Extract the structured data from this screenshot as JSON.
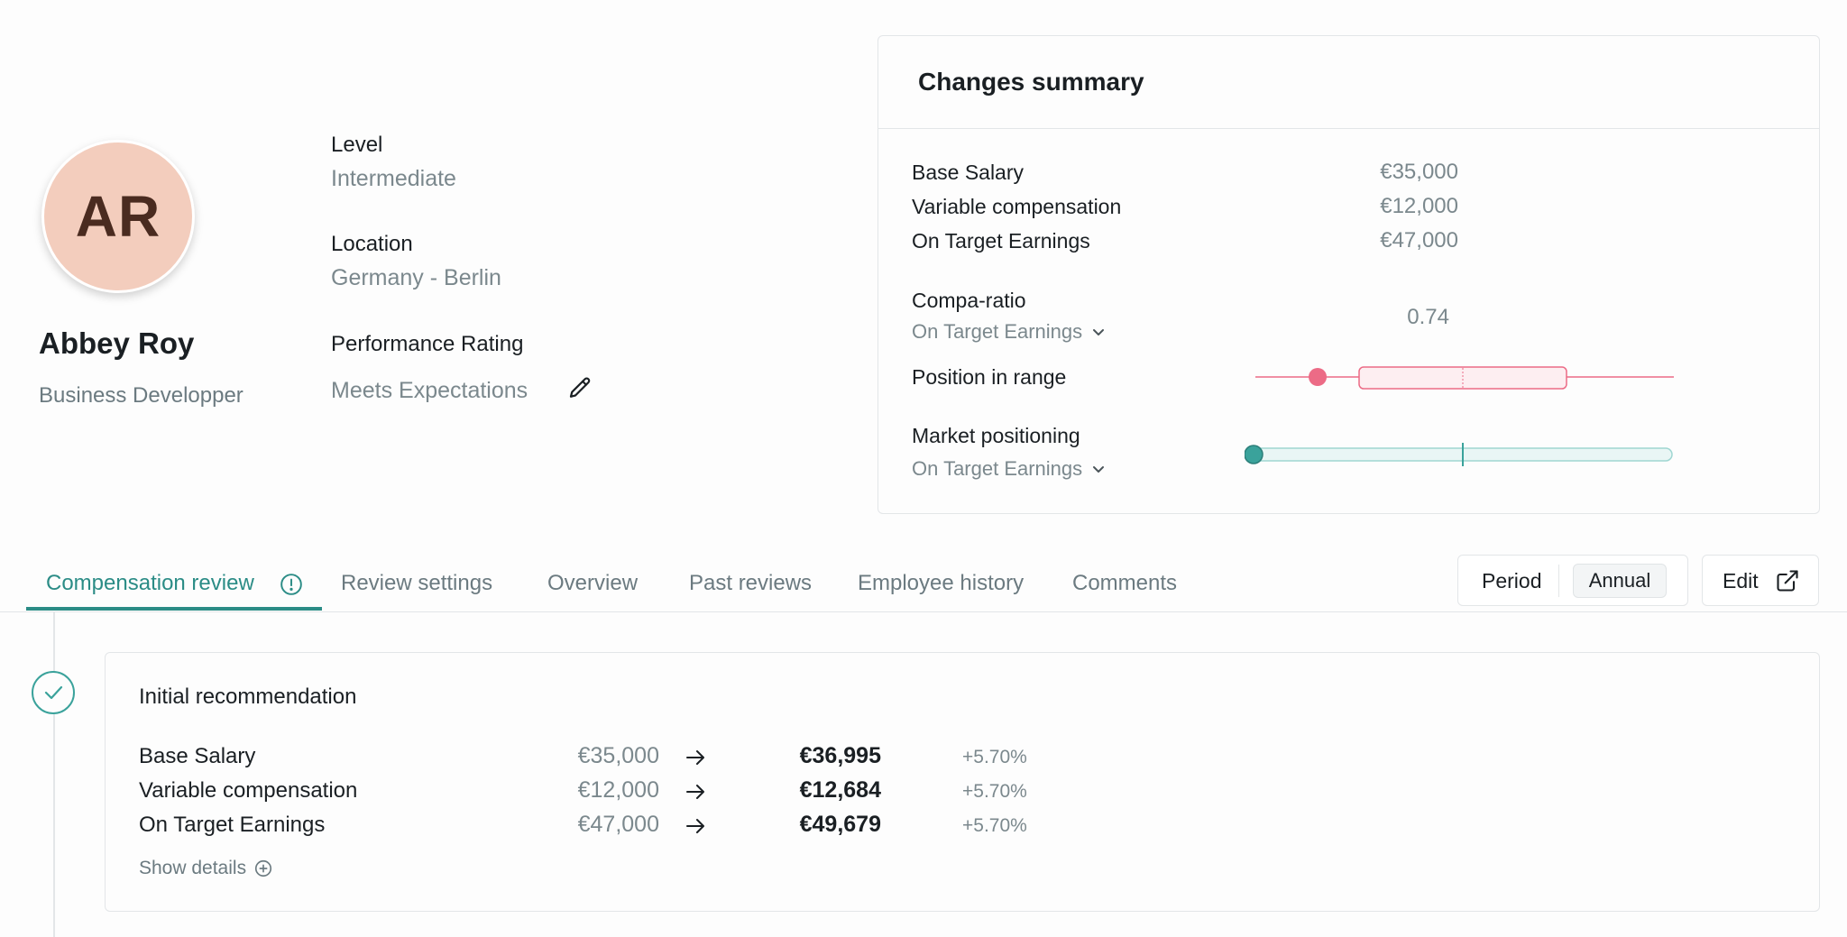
{
  "profile": {
    "initials": "AR",
    "name": "Abbey Roy",
    "job_title": "Business Developper",
    "avatar_color": "#f3cdbd",
    "fields": [
      {
        "label": "Level",
        "value": "Intermediate"
      },
      {
        "label": "Location",
        "value": "Germany - Berlin"
      },
      {
        "label": "Performance Rating",
        "value": "Meets Expectations"
      }
    ],
    "edit_rating_icon": "pencil-icon"
  },
  "summary": {
    "title": "Changes summary",
    "rows": [
      {
        "label": "Base Salary",
        "value": "€35,000"
      },
      {
        "label": "Variable compensation",
        "value": "€12,000"
      },
      {
        "label": "On Target Earnings",
        "value": "€47,000"
      }
    ],
    "compa_ratio": {
      "label": "Compa-ratio",
      "selector": "On Target Earnings",
      "value": "0.74"
    },
    "position_in_range": {
      "label": "Position in range",
      "color": "#ec6b86",
      "marker_fraction": 0.13
    },
    "market_positioning": {
      "label": "Market positioning",
      "selector": "On Target Earnings",
      "color": "#3aa29b",
      "marker_fraction": 0.0
    }
  },
  "tabs": [
    {
      "label": "Compensation review",
      "active": true,
      "icon": "info-icon"
    },
    {
      "label": "Review settings",
      "active": false
    },
    {
      "label": "Overview",
      "active": false
    },
    {
      "label": "Past reviews",
      "active": false
    },
    {
      "label": "Employee history",
      "active": false
    },
    {
      "label": "Comments",
      "active": false
    }
  ],
  "toolbar": {
    "period_label": "Period",
    "period_value": "Annual",
    "edit_label": "Edit",
    "edit_icon": "external-link-icon"
  },
  "recommendation": {
    "title": "Initial recommendation",
    "status_icon": "check-icon",
    "rows": [
      {
        "label": "Base Salary",
        "old": "€35,000",
        "new": "€36,995",
        "change": "+5.70%"
      },
      {
        "label": "Variable compensation",
        "old": "€12,000",
        "new": "€12,684",
        "change": "+5.70%"
      },
      {
        "label": "On Target Earnings",
        "old": "€47,000",
        "new": "€49,679",
        "change": "+5.70%"
      }
    ],
    "show_details": "Show details"
  },
  "colors": {
    "accent": "#2b8c86",
    "muted_text": "#7b888d",
    "border": "#e3e6e8"
  }
}
